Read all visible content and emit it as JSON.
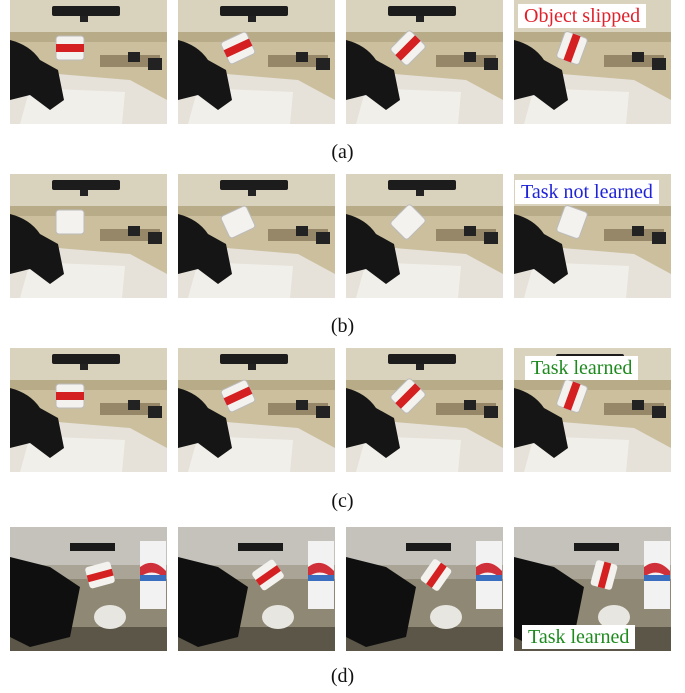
{
  "rows": [
    {
      "caption": "(a)",
      "label": "Object slipped",
      "label_color": "#e0202a",
      "scene": "lab",
      "cup": "striped"
    },
    {
      "caption": "(b)",
      "label": "Task not learned",
      "label_color": "#1e22d8",
      "scene": "lab",
      "cup": "plain"
    },
    {
      "caption": "(c)",
      "label": "Task learned",
      "label_color": "#1e8a1e",
      "scene": "lab",
      "cup": "striped"
    },
    {
      "caption": "(d)",
      "label": "Task learned",
      "label_color": "#1e8a1e",
      "scene": "kitchen",
      "cup": "striped"
    }
  ]
}
